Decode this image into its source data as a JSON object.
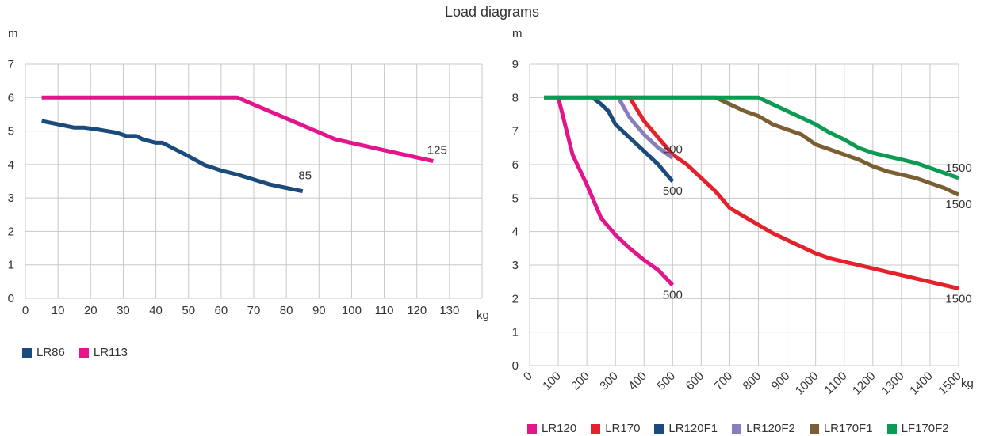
{
  "title": "Load diagrams",
  "chart_data": [
    {
      "type": "line",
      "title": "",
      "xlabel": "kg",
      "ylabel": "m",
      "xlim": [
        0,
        140
      ],
      "ylim": [
        0,
        7
      ],
      "xticks": [
        "0",
        "10",
        "20",
        "30",
        "40",
        "50",
        "60",
        "70",
        "80",
        "90",
        "100",
        "110",
        "120",
        "130"
      ],
      "yticks": [
        "0",
        "1",
        "2",
        "3",
        "4",
        "5",
        "6",
        "7"
      ],
      "grid": true,
      "legend": "bottom-left",
      "series": [
        {
          "name": "LR86",
          "color": "#1b4a7c",
          "x": [
            5,
            10,
            15,
            18,
            22,
            28,
            31,
            34,
            36,
            40,
            42,
            45,
            50,
            55,
            57,
            60,
            65,
            70,
            75,
            80,
            85
          ],
          "y": [
            5.3,
            5.2,
            5.1,
            5.1,
            5.05,
            4.95,
            4.85,
            4.85,
            4.75,
            4.65,
            4.65,
            4.5,
            4.25,
            3.98,
            3.92,
            3.82,
            3.7,
            3.55,
            3.4,
            3.3,
            3.2
          ],
          "end_label": "85"
        },
        {
          "name": "LR113",
          "color": "#e2158c",
          "x": [
            5,
            65,
            95,
            125
          ],
          "y": [
            6,
            6,
            4.75,
            4.1
          ],
          "end_label": "125"
        }
      ]
    },
    {
      "type": "line",
      "title": "",
      "xlabel": "kg",
      "ylabel": "m",
      "xlim": [
        0,
        1500
      ],
      "ylim": [
        0,
        9
      ],
      "xticks": [
        "0",
        "100",
        "200",
        "300",
        "400",
        "500",
        "600",
        "700",
        "800",
        "900",
        "1000",
        "1100",
        "1200",
        "1300",
        "1400",
        "1500"
      ],
      "yticks": [
        "0",
        "1",
        "2",
        "3",
        "4",
        "5",
        "6",
        "7",
        "8",
        "9"
      ],
      "grid": true,
      "legend": "bottom",
      "series": [
        {
          "name": "LR120",
          "color": "#e2158c",
          "x": [
            100,
            150,
            200,
            250,
            300,
            350,
            400,
            450,
            500
          ],
          "y": [
            8,
            6.3,
            5.4,
            4.4,
            3.9,
            3.5,
            3.15,
            2.85,
            2.4
          ],
          "end_label": "500"
        },
        {
          "name": "LR170",
          "color": "#e3222b",
          "x": [
            350,
            400,
            450,
            500,
            550,
            600,
            650,
            700,
            750,
            800,
            850,
            900,
            950,
            1000,
            1050,
            1100,
            1150,
            1200,
            1250,
            1300,
            1350,
            1400,
            1450,
            1500
          ],
          "y": [
            8,
            7.3,
            6.8,
            6.3,
            6.0,
            5.6,
            5.2,
            4.7,
            4.45,
            4.2,
            3.95,
            3.75,
            3.55,
            3.35,
            3.2,
            3.1,
            3.0,
            2.9,
            2.8,
            2.7,
            2.6,
            2.5,
            2.4,
            2.3
          ],
          "end_label": "1500"
        },
        {
          "name": "LR120F1",
          "color": "#1b4a7c",
          "x": [
            220,
            250,
            275,
            300,
            350,
            400,
            450,
            500
          ],
          "y": [
            8,
            7.8,
            7.6,
            7.2,
            6.8,
            6.4,
            6.0,
            5.5
          ],
          "end_label": "500"
        },
        {
          "name": "LR120F2",
          "color": "#8a7dbd",
          "x": [
            310,
            350,
            400,
            450,
            500
          ],
          "y": [
            8,
            7.4,
            6.9,
            6.5,
            6.2
          ],
          "end_label": "500"
        },
        {
          "name": "LR170F1",
          "color": "#7b5e31",
          "x": [
            50,
            650,
            700,
            750,
            800,
            850,
            900,
            950,
            1000,
            1050,
            1100,
            1150,
            1200,
            1250,
            1300,
            1350,
            1400,
            1450,
            1500
          ],
          "y": [
            8,
            8,
            7.8,
            7.6,
            7.45,
            7.2,
            7.05,
            6.9,
            6.6,
            6.45,
            6.3,
            6.15,
            5.95,
            5.8,
            5.7,
            5.6,
            5.45,
            5.3,
            5.1
          ],
          "end_label": "1500"
        },
        {
          "name": "LF170F2",
          "color": "#0c9b52",
          "x": [
            50,
            800,
            850,
            900,
            950,
            1000,
            1050,
            1100,
            1150,
            1200,
            1250,
            1300,
            1350,
            1400,
            1450,
            1500
          ],
          "y": [
            8,
            8,
            7.8,
            7.6,
            7.4,
            7.2,
            6.95,
            6.75,
            6.5,
            6.35,
            6.25,
            6.15,
            6.05,
            5.9,
            5.75,
            5.6
          ],
          "end_label": "1500"
        }
      ]
    }
  ]
}
